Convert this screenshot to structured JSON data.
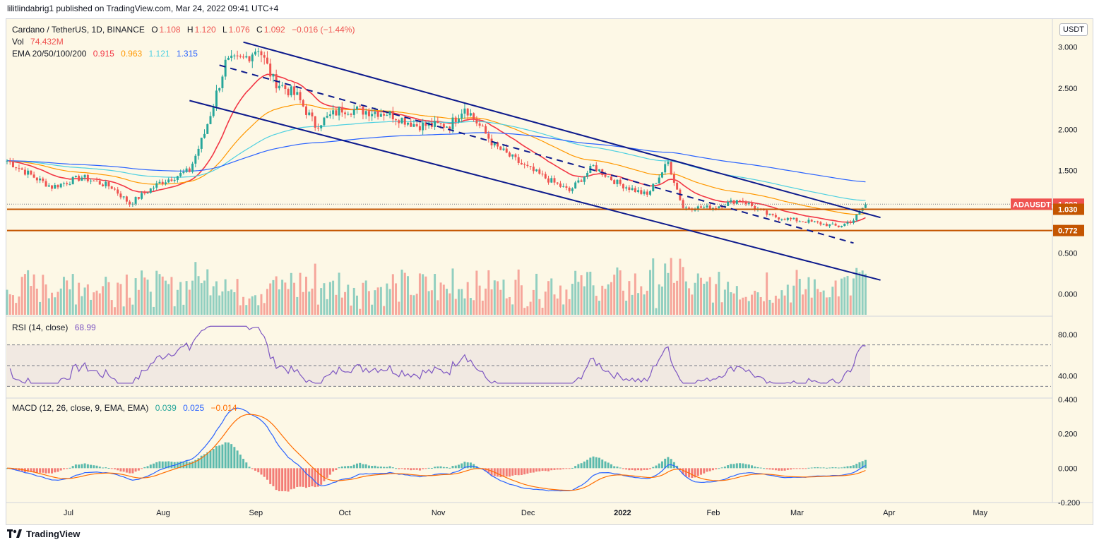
{
  "header": {
    "publish_line": "lilitlindabrig1 published on TradingView.com, Mar 24, 2022 09:41 UTC+4"
  },
  "legend": {
    "symbol": "Cardano / TetherUS, 1D, BINANCE",
    "o_label": "O",
    "o": "1.108",
    "h_label": "H",
    "h": "1.120",
    "l_label": "L",
    "l": "1.076",
    "c_label": "C",
    "c": "1.092",
    "chg": "−0.016 (−1.44%)",
    "vol_label": "Vol",
    "vol": "74.432M",
    "ema_label": "EMA 20/50/100/200",
    "ema20": "0.915",
    "ema50": "0.963",
    "ema100": "1.121",
    "ema200": "1.315"
  },
  "rsi_legend": {
    "label": "RSI (14, close)",
    "value": "68.99"
  },
  "macd_legend": {
    "label": "MACD (12, 26, close, 9, EMA, EMA)",
    "v1": "0.039",
    "v2": "0.025",
    "v3": "−0.014"
  },
  "currency_button": "USDT",
  "footer": {
    "brand": "TradingView"
  },
  "colors": {
    "up": "#26a69a",
    "down": "#ef5350",
    "ema20": "#f23645",
    "ema50": "#ff9800",
    "ema100": "#4dd0e1",
    "ema200": "#2962ff",
    "channel": "#0d1a8c",
    "hline": "#c45500",
    "rsi": "#7e57c2",
    "macd": "#2962ff",
    "signal": "#ff6d00"
  },
  "chart_data": [
    {
      "type": "candlestick",
      "title": "Cardano / TetherUS, 1D, BINANCE",
      "ylim": [
        -0.2,
        3.1
      ],
      "y_ticks": [
        "3.000",
        "2.500",
        "2.000",
        "1.500",
        "1.000",
        "0.500",
        "0.000"
      ],
      "x_ticks": [
        "Jul",
        "Aug",
        "Sep",
        "Oct",
        "Nov",
        "Dec",
        "2022",
        "Feb",
        "Mar",
        "Apr",
        "May"
      ],
      "x_range": [
        "2021-06-10",
        "2022-05-25"
      ],
      "close_series": [
        [
          "2021-06-10",
          1.62
        ],
        [
          "2021-06-20",
          1.4
        ],
        [
          "2021-06-25",
          1.3
        ],
        [
          "2021-07-05",
          1.42
        ],
        [
          "2021-07-15",
          1.3
        ],
        [
          "2021-07-21",
          1.1
        ],
        [
          "2021-07-31",
          1.35
        ],
        [
          "2021-08-10",
          1.5
        ],
        [
          "2021-08-15",
          1.95
        ],
        [
          "2021-08-22",
          2.8
        ],
        [
          "2021-08-28",
          2.85
        ],
        [
          "2021-09-02",
          3.0
        ],
        [
          "2021-09-07",
          2.6
        ],
        [
          "2021-09-15",
          2.4
        ],
        [
          "2021-09-21",
          2.05
        ],
        [
          "2021-09-30",
          2.25
        ],
        [
          "2021-10-15",
          2.2
        ],
        [
          "2021-10-25",
          2.05
        ],
        [
          "2021-11-05",
          2.05
        ],
        [
          "2021-11-10",
          2.28
        ],
        [
          "2021-11-20",
          1.8
        ],
        [
          "2021-11-30",
          1.55
        ],
        [
          "2021-12-05",
          1.45
        ],
        [
          "2021-12-15",
          1.25
        ],
        [
          "2021-12-23",
          1.55
        ],
        [
          "2021-12-31",
          1.35
        ],
        [
          "2022-01-10",
          1.2
        ],
        [
          "2022-01-17",
          1.6
        ],
        [
          "2022-01-22",
          1.05
        ],
        [
          "2022-02-01",
          1.05
        ],
        [
          "2022-02-10",
          1.15
        ],
        [
          "2022-02-20",
          0.95
        ],
        [
          "2022-02-28",
          0.9
        ],
        [
          "2022-03-05",
          0.88
        ],
        [
          "2022-03-15",
          0.82
        ],
        [
          "2022-03-20",
          0.9
        ],
        [
          "2022-03-24",
          1.092
        ]
      ],
      "ema": [
        {
          "name": "EMA 20",
          "last": 0.915
        },
        {
          "name": "EMA 50",
          "last": 0.963
        },
        {
          "name": "EMA 100",
          "last": 1.121
        },
        {
          "name": "EMA 200",
          "last": 1.315
        }
      ],
      "price_labels": [
        {
          "text": "ADAUSDT",
          "value": "1.092"
        },
        {
          "text": "",
          "value": "1.030"
        },
        {
          "text": "",
          "value": "0.772"
        }
      ],
      "horizontal_levels": [
        1.03,
        0.772
      ],
      "channel_lines": [
        {
          "style": "solid",
          "from": [
            "2021-08-28",
            3.06
          ],
          "to": [
            "2022-03-29",
            0.93
          ]
        },
        {
          "style": "solid",
          "from": [
            "2021-08-10",
            2.35
          ],
          "to": [
            "2022-03-29",
            0.17
          ]
        },
        {
          "style": "dashed",
          "from": [
            "2021-08-20",
            2.78
          ],
          "to": [
            "2022-03-20",
            0.62
          ]
        }
      ]
    },
    {
      "type": "line",
      "title": "RSI (14, close)",
      "ylim": [
        20,
        95
      ],
      "y_ticks": [
        "80.00",
        "40.00"
      ],
      "bands": [
        70,
        50,
        30
      ],
      "last": 68.99
    },
    {
      "type": "bar",
      "title": "MACD (12, 26, close, 9, EMA, EMA)",
      "ylim": [
        -0.2,
        0.4
      ],
      "y_ticks": [
        "0.400",
        "0.200",
        "0.000",
        "-0.200"
      ],
      "last": {
        "histogram": 0.039,
        "macd": 0.025,
        "signal": -0.014
      }
    }
  ]
}
